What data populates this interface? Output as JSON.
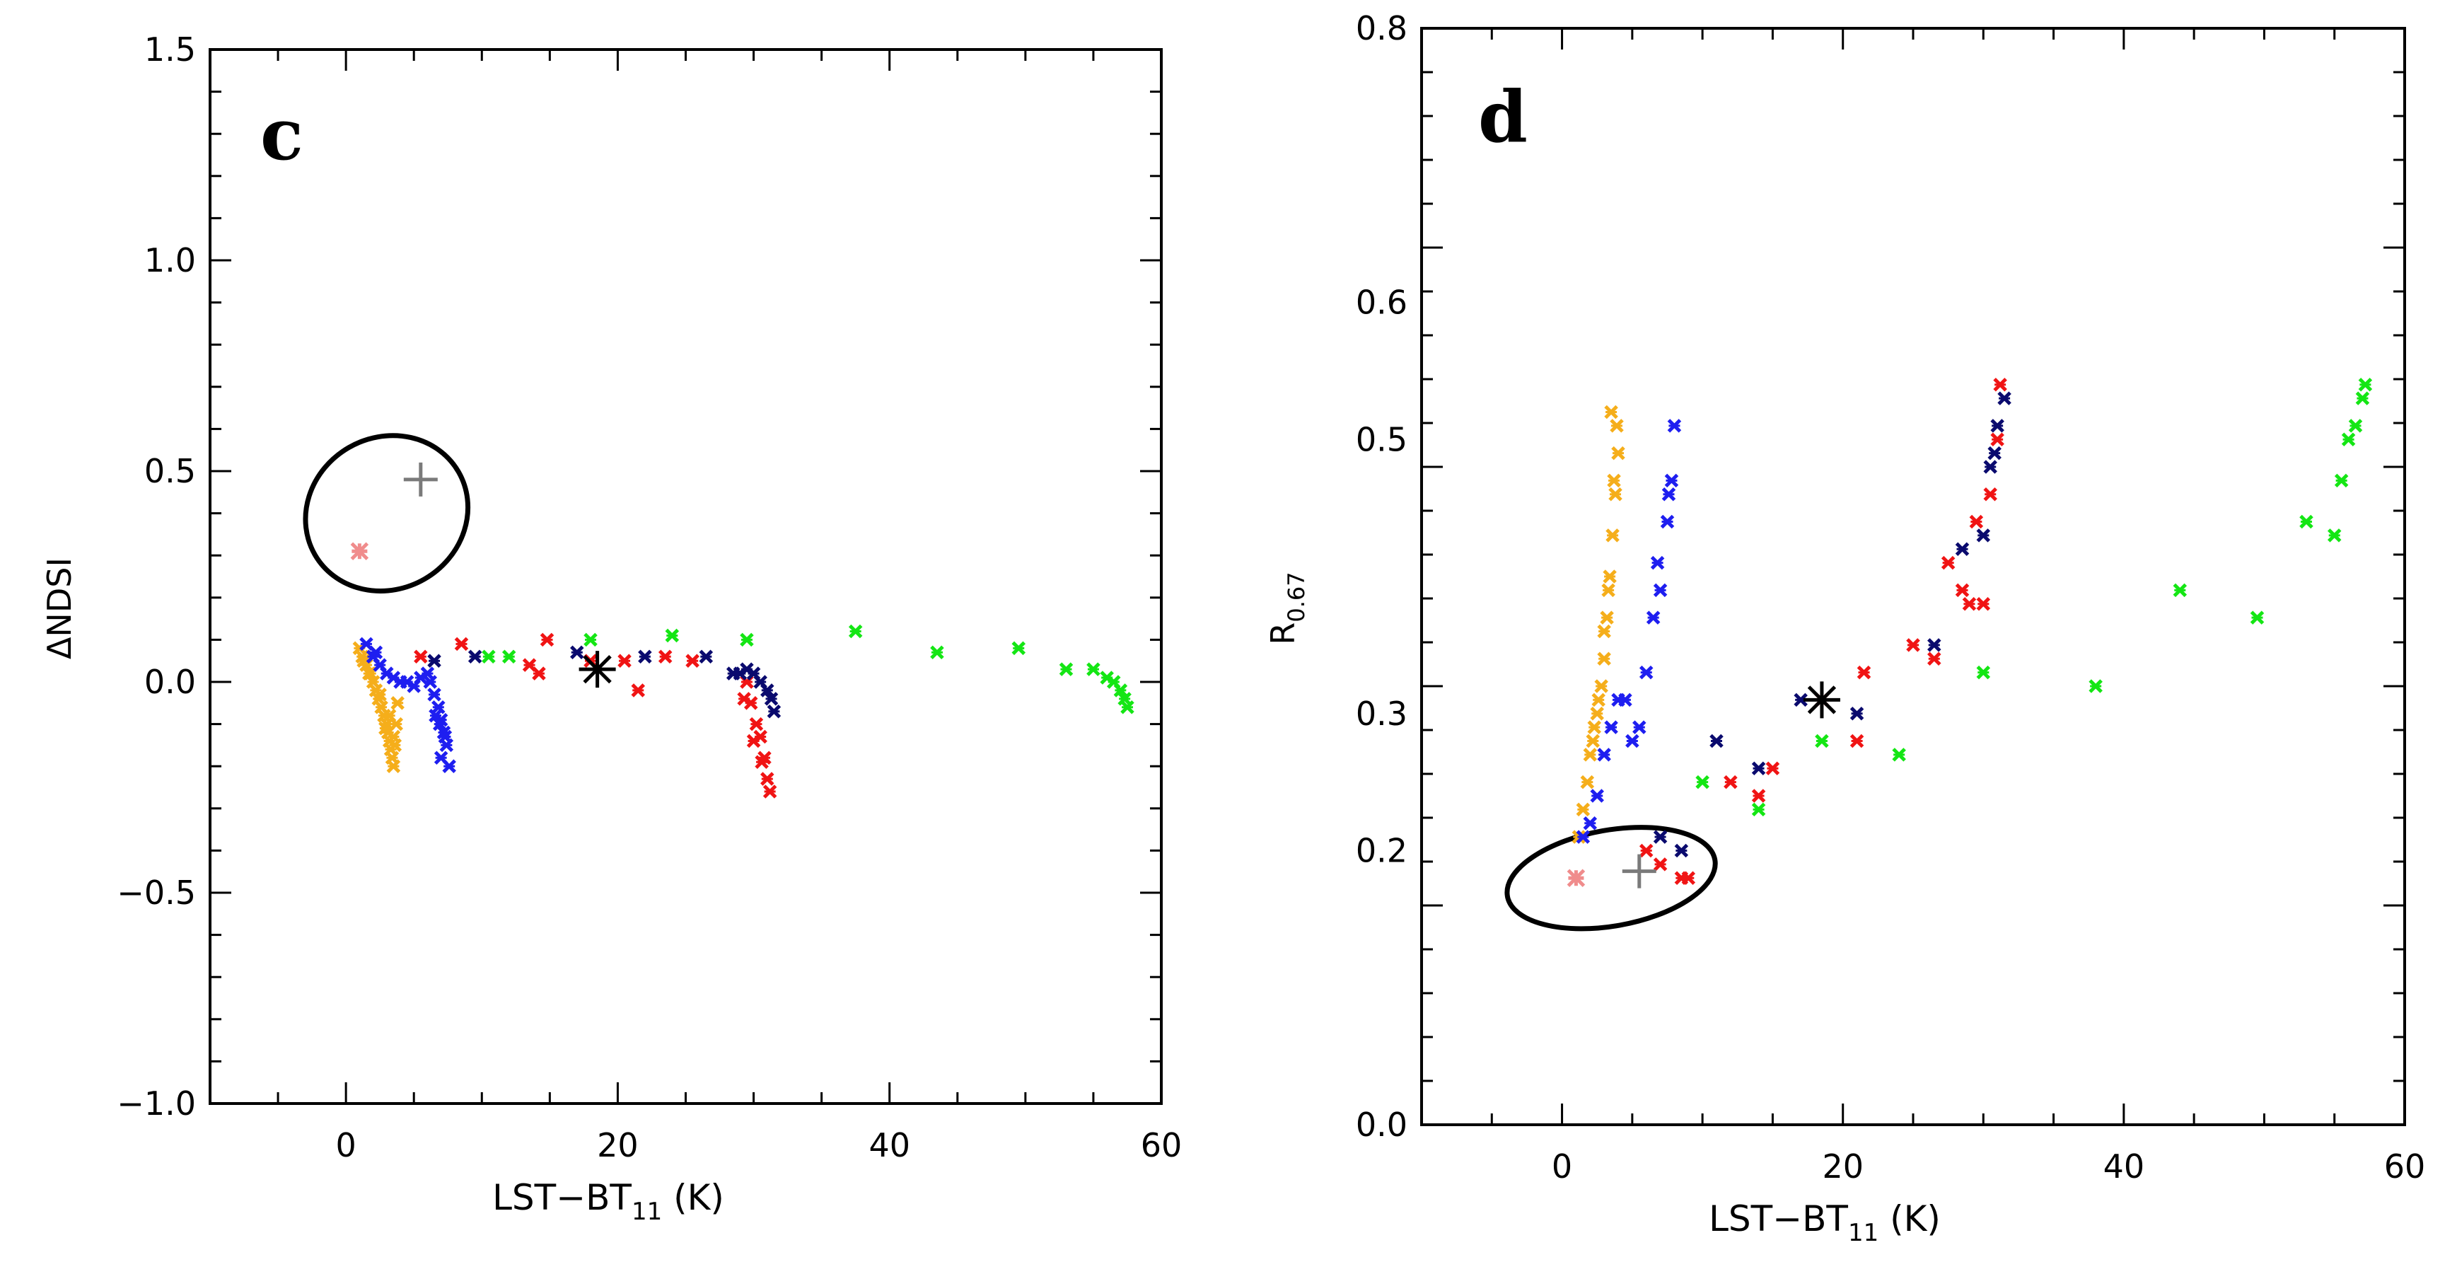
{
  "colors": {
    "orange": "#F5AE1B",
    "blue": "#1E1EF0",
    "navy": "#0A0A6E",
    "red": "#F01414",
    "green": "#14E614",
    "pink": "#F08C8C",
    "gray": "#7A7A7A",
    "black": "#000000"
  },
  "chart_data": [
    {
      "type": "scatter",
      "panel_label": "c",
      "title": "",
      "xlabel": "LST−BT",
      "xlabel_sub": "11",
      "xlabel_unit": "(K)",
      "ylabel": "ΔNDSI",
      "xlim": [
        -10,
        60
      ],
      "ylim": [
        -1.0,
        1.5
      ],
      "xticks": [
        0,
        20,
        40,
        60
      ],
      "xtick_labels": [
        "0",
        "20",
        "40",
        "60"
      ],
      "yticks": [
        -1.0,
        -0.5,
        0.0,
        0.5,
        1.0,
        1.5
      ],
      "ytick_labels": [
        "−1.0",
        "−0.5",
        "0.0",
        "0.5",
        "1.0",
        "1.5"
      ],
      "series": [
        {
          "name": "orange",
          "color_key": "orange",
          "marker": "x",
          "x": [
            1.0,
            1.2,
            1.5,
            1.7,
            2.0,
            2.2,
            2.4,
            2.6,
            2.8,
            3.0,
            3.1,
            3.2,
            3.3,
            3.4,
            3.5,
            3.6,
            3.7,
            3.8,
            1.3,
            1.8,
            2.5,
            3.2,
            3.5,
            2.9
          ],
          "y": [
            0.08,
            0.06,
            0.04,
            0.02,
            0.0,
            -0.02,
            -0.04,
            -0.06,
            -0.08,
            -0.1,
            -0.12,
            -0.14,
            -0.16,
            -0.18,
            -0.2,
            -0.15,
            -0.1,
            -0.05,
            0.05,
            0.02,
            -0.03,
            -0.08,
            -0.13,
            -0.11
          ]
        },
        {
          "name": "blue",
          "color_key": "blue",
          "marker": "x",
          "x": [
            1.5,
            2.0,
            2.5,
            3.0,
            3.5,
            4.0,
            4.5,
            5.0,
            5.5,
            6.0,
            6.2,
            6.5,
            6.8,
            7.0,
            7.2,
            7.4,
            7.6,
            7.0,
            6.6,
            6.9,
            7.3,
            2.2
          ],
          "y": [
            0.09,
            0.06,
            0.04,
            0.02,
            0.01,
            0.0,
            0.0,
            -0.01,
            0.01,
            0.02,
            0.0,
            -0.03,
            -0.06,
            -0.09,
            -0.12,
            -0.15,
            -0.2,
            -0.18,
            -0.08,
            -0.1,
            -0.13,
            0.07
          ]
        },
        {
          "name": "red",
          "color_key": "red",
          "marker": "x",
          "x": [
            5.5,
            8.5,
            13.5,
            14.2,
            14.8,
            18.0,
            20.5,
            21.5,
            23.5,
            25.5,
            29.5,
            29.8,
            30.2,
            30.5,
            30.8,
            31.0,
            29.3,
            30.0,
            30.6,
            31.2
          ],
          "y": [
            0.06,
            0.09,
            0.04,
            0.02,
            0.1,
            0.05,
            0.05,
            -0.02,
            0.06,
            0.05,
            0.0,
            -0.05,
            -0.1,
            -0.13,
            -0.18,
            -0.23,
            -0.04,
            -0.14,
            -0.19,
            -0.26
          ]
        },
        {
          "name": "navy",
          "color_key": "navy",
          "marker": "x",
          "x": [
            6.5,
            9.5,
            17.0,
            22.0,
            26.5,
            28.5,
            29.0,
            29.5,
            30.0,
            30.5,
            31.0,
            31.3,
            31.5
          ],
          "y": [
            0.05,
            0.06,
            0.07,
            0.06,
            0.06,
            0.02,
            0.02,
            0.03,
            0.02,
            0.0,
            -0.02,
            -0.04,
            -0.07
          ]
        },
        {
          "name": "green",
          "color_key": "green",
          "marker": "x",
          "x": [
            10.5,
            12.0,
            18.0,
            24.0,
            29.5,
            37.5,
            43.5,
            49.5,
            53.0,
            55.0,
            56.0,
            56.5,
            57.0,
            57.3,
            57.5
          ],
          "y": [
            0.06,
            0.06,
            0.1,
            0.11,
            0.1,
            0.12,
            0.07,
            0.08,
            0.03,
            0.03,
            0.01,
            0.0,
            -0.02,
            -0.04,
            -0.06
          ]
        },
        {
          "name": "pink",
          "color_key": "pink",
          "marker": "star",
          "x": [
            1.0
          ],
          "y": [
            0.31
          ]
        },
        {
          "name": "gray",
          "color_key": "gray",
          "marker": "plus",
          "x": [
            5.5
          ],
          "y": [
            0.48
          ]
        },
        {
          "name": "black",
          "color_key": "black",
          "marker": "asterisk",
          "x": [
            18.5
          ],
          "y": [
            0.03
          ]
        }
      ],
      "ellipse": {
        "cx": 3.0,
        "cy": 0.4,
        "rx": 6.1,
        "ry": 0.18,
        "rotate": -30
      }
    },
    {
      "type": "scatter",
      "panel_label": "d",
      "title": "",
      "xlabel": "LST−BT",
      "xlabel_sub": "11",
      "xlabel_unit": "(K)",
      "ylabel": "R",
      "ylabel_sub": "0.67",
      "xlim": [
        -10,
        60
      ],
      "ylim": [
        0.0,
        0.8
      ],
      "xticks": [
        0,
        20,
        40,
        60
      ],
      "xtick_labels": [
        "0",
        "20",
        "40",
        "60"
      ],
      "yticks": [
        0.0,
        0.2,
        0.3,
        0.5,
        0.6,
        0.8
      ],
      "ytick_labels": [
        "0.0",
        "0.2",
        "0.3",
        "0.5",
        "0.6",
        "0.8"
      ],
      "series": [
        {
          "name": "orange",
          "color_key": "orange",
          "marker": "x",
          "x": [
            1.2,
            1.5,
            1.8,
            2.0,
            2.2,
            2.5,
            2.8,
            3.0,
            3.2,
            3.4,
            3.6,
            3.8,
            4.0,
            3.5,
            3.0,
            2.6,
            2.3,
            3.9,
            3.7,
            3.3
          ],
          "y": [
            0.21,
            0.23,
            0.25,
            0.27,
            0.28,
            0.3,
            0.32,
            0.34,
            0.37,
            0.4,
            0.43,
            0.46,
            0.49,
            0.52,
            0.36,
            0.31,
            0.29,
            0.51,
            0.47,
            0.39
          ]
        },
        {
          "name": "blue",
          "color_key": "blue",
          "marker": "x",
          "x": [
            1.5,
            2.0,
            2.5,
            3.0,
            3.5,
            4.0,
            4.5,
            5.0,
            5.5,
            6.0,
            6.5,
            7.0,
            7.5,
            7.8,
            8.0,
            6.8,
            7.6
          ],
          "y": [
            0.21,
            0.22,
            0.24,
            0.27,
            0.29,
            0.31,
            0.31,
            0.28,
            0.29,
            0.33,
            0.37,
            0.39,
            0.44,
            0.47,
            0.51,
            0.41,
            0.46
          ]
        },
        {
          "name": "red",
          "color_key": "red",
          "marker": "x",
          "x": [
            6.0,
            7.0,
            8.5,
            9.0,
            12.0,
            14.0,
            15.0,
            18.5,
            21.0,
            21.5,
            25.0,
            26.5,
            27.5,
            28.5,
            29.0,
            29.5,
            30.5,
            31.0,
            31.2,
            30.0
          ],
          "y": [
            0.2,
            0.19,
            0.18,
            0.18,
            0.25,
            0.24,
            0.26,
            0.31,
            0.28,
            0.33,
            0.35,
            0.34,
            0.41,
            0.39,
            0.38,
            0.44,
            0.46,
            0.5,
            0.54,
            0.38
          ]
        },
        {
          "name": "navy",
          "color_key": "navy",
          "marker": "x",
          "x": [
            7.0,
            8.5,
            11.0,
            14.0,
            17.0,
            21.0,
            26.5,
            28.5,
            30.0,
            30.5,
            31.0,
            31.5,
            30.8
          ],
          "y": [
            0.21,
            0.2,
            0.28,
            0.26,
            0.31,
            0.3,
            0.35,
            0.42,
            0.43,
            0.48,
            0.51,
            0.53,
            0.49
          ]
        },
        {
          "name": "green",
          "color_key": "green",
          "marker": "x",
          "x": [
            10.0,
            14.0,
            18.5,
            24.0,
            30.0,
            38.0,
            44.0,
            49.5,
            53.0,
            55.0,
            55.5,
            56.0,
            56.5,
            57.0,
            57.2
          ],
          "y": [
            0.25,
            0.23,
            0.28,
            0.27,
            0.33,
            0.32,
            0.39,
            0.37,
            0.44,
            0.43,
            0.47,
            0.5,
            0.51,
            0.53,
            0.54
          ]
        },
        {
          "name": "pink",
          "color_key": "pink",
          "marker": "star",
          "x": [
            1.0
          ],
          "y": [
            0.18
          ]
        },
        {
          "name": "gray",
          "color_key": "gray",
          "marker": "plus",
          "x": [
            5.5
          ],
          "y": [
            0.185
          ]
        },
        {
          "name": "black",
          "color_key": "black",
          "marker": "asterisk",
          "x": [
            18.5
          ],
          "y": [
            0.31
          ]
        }
      ],
      "ellipse": {
        "cx": 3.5,
        "cy": 0.18,
        "rx": 7.5,
        "ry": 0.035,
        "rotate": -10
      }
    }
  ]
}
